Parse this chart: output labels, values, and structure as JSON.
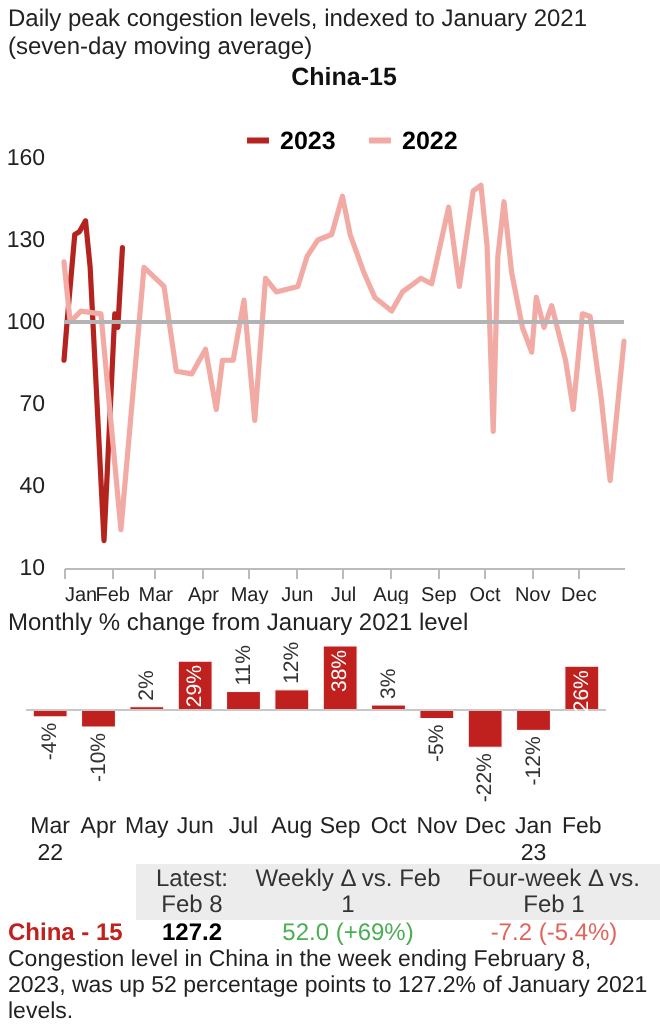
{
  "chart_data": [
    {
      "type": "line",
      "title": "Daily peak congestion levels, indexed to January 2021 (seven-day moving average)",
      "subtitle": "China-15",
      "series": [
        {
          "name": "2023",
          "color": "#b5231f",
          "x": [
            "--01-01",
            "--01-03",
            "--01-08",
            "--01-11",
            "--01-15",
            "--01-18",
            "--01-27",
            "--02-03",
            "--02-05",
            "--02-08"
          ],
          "values": [
            86,
            100,
            132,
            133,
            137,
            120,
            20,
            103,
            98,
            127.2
          ]
        },
        {
          "name": "2022",
          "color": "#f2aaa5",
          "x": [
            "--01-01",
            "--01-05",
            "--01-12",
            "--01-25",
            "--02-07",
            "--02-22",
            "--03-07",
            "--03-15",
            "--03-25",
            "--04-03",
            "--04-10",
            "--04-14",
            "--04-21",
            "--04-28",
            "--05-05",
            "--05-12",
            "--05-19",
            "--06-02",
            "--06-08",
            "--06-15",
            "--06-24",
            "--07-01",
            "--07-06",
            "--07-15",
            "--07-22",
            "--08-02",
            "--08-09",
            "--08-21",
            "--08-28",
            "--09-08",
            "--09-15",
            "--09-24",
            "--09-29",
            "--10-03",
            "--10-07",
            "--10-10",
            "--10-14",
            "--10-19",
            "--10-26",
            "--11-01",
            "--11-04",
            "--11-09",
            "--11-14",
            "--11-23",
            "--11-28",
            "--12-04",
            "--12-09",
            "--12-16",
            "--12-22",
            "--12-31"
          ],
          "values": [
            122,
            100,
            104,
            103,
            24,
            120,
            113,
            82,
            81,
            90,
            68,
            86,
            86,
            108,
            64,
            116,
            111,
            113,
            124,
            130,
            132,
            146,
            132,
            118,
            109,
            104,
            111,
            116,
            114,
            142,
            113,
            148,
            150,
            128,
            60,
            124,
            144,
            118,
            98,
            89,
            109,
            98,
            106,
            86,
            68,
            103,
            102,
            73,
            42,
            93
          ]
        }
      ],
      "xlim": [
        "--01-01",
        "--12-31"
      ],
      "xticks": [
        {
          "value": "--01-01",
          "label": "Jan"
        },
        {
          "value": "--02-01",
          "label": "Feb"
        },
        {
          "value": "--03-01",
          "label": "Mar"
        },
        {
          "value": "--04-01",
          "label": "Apr"
        },
        {
          "value": "--05-01",
          "label": "May"
        },
        {
          "value": "--06-01",
          "label": "Jun"
        },
        {
          "value": "--07-01",
          "label": "Jul"
        },
        {
          "value": "--08-01",
          "label": "Aug"
        },
        {
          "value": "--09-01",
          "label": "Sep"
        },
        {
          "value": "--10-01",
          "label": "Oct"
        },
        {
          "value": "--11-01",
          "label": "Nov"
        },
        {
          "value": "--12-01",
          "label": "Dec"
        }
      ],
      "ylim": [
        10,
        160
      ],
      "yticks": [
        10,
        40,
        70,
        100,
        130,
        160
      ],
      "ref_lines": [
        {
          "axis": "y",
          "value": 100,
          "color": "#b3b3b3"
        }
      ],
      "legend": "top",
      "grid": false
    },
    {
      "type": "bar",
      "title": "Monthly % change from January 2021 level",
      "categories": [
        "Mar 22",
        "Apr",
        "May",
        "Jun",
        "Jul",
        "Aug",
        "Sep",
        "Oct",
        "Nov",
        "Dec",
        "Jan 23",
        "Feb"
      ],
      "values": [
        -4,
        -10,
        2,
        29,
        11,
        12,
        38,
        3,
        -5,
        -22,
        -12,
        26
      ],
      "value_labels": [
        "-4%",
        "-10%",
        "2%",
        "29%",
        "11%",
        "12%",
        "38%",
        "3%",
        "-5%",
        "-22%",
        "-12%",
        "26%"
      ],
      "color": "#c0201e"
    },
    {
      "type": "other",
      "annotations": [
        "Latest: Feb 8",
        "Weekly Δ vs. Feb 1",
        "Four-week Δ vs. Feb 1",
        "China - 15",
        "127.2",
        "52.0 (+69%)",
        "-7.2 (-5.4%)",
        "Congestion level in China in the week ending February 8, 2023, was up 52 percentage points to 127.2% of January 2021 levels."
      ]
    }
  ]
}
